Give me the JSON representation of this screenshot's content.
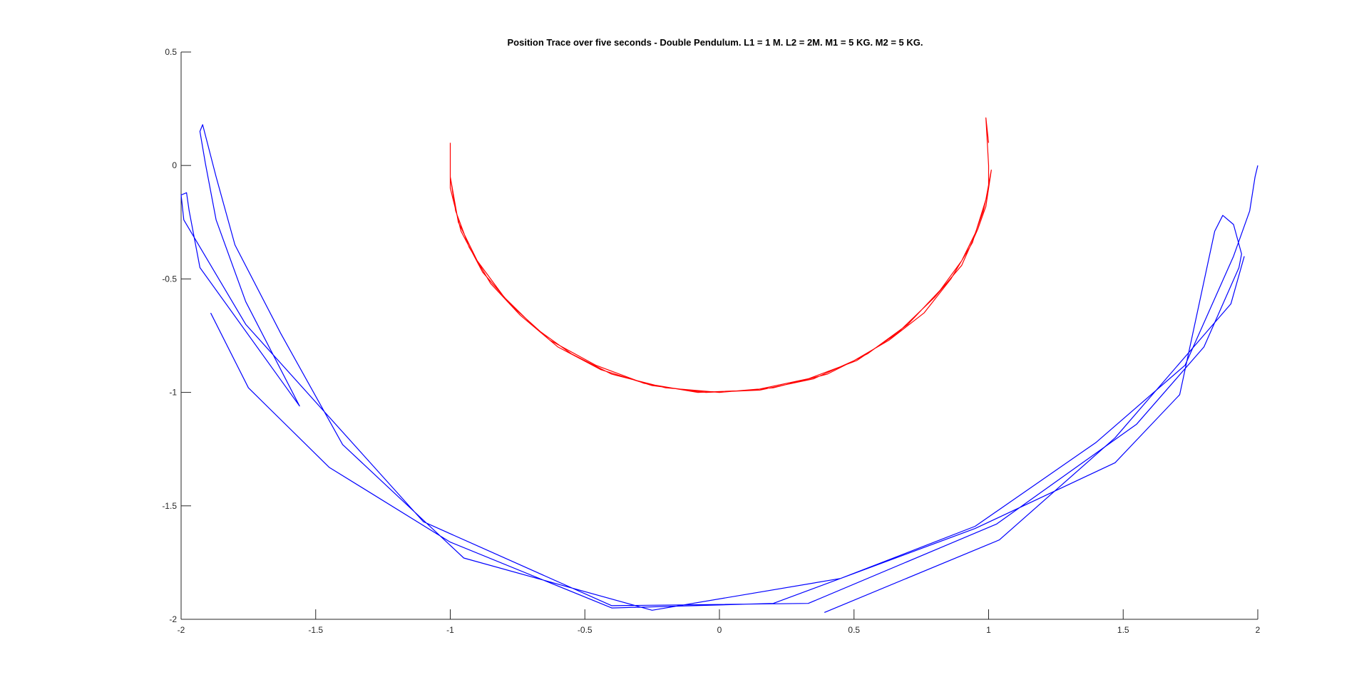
{
  "chart_data": {
    "type": "line",
    "title": "Position Trace over five seconds - Double Pendulum. L1 = 1 M. L2 = 2M. M1 = 5 KG. M2 = 5 KG.",
    "xlabel": "",
    "ylabel": "",
    "xlim": [
      -2,
      2
    ],
    "ylim": [
      -2,
      0.5
    ],
    "grid": false,
    "x_ticks": [
      -2,
      -1.5,
      -1,
      -0.5,
      0,
      0.5,
      1,
      1.5,
      2
    ],
    "x_tick_labels": [
      "-2",
      "-1.5",
      "-1",
      "-0.5",
      "0",
      "0.5",
      "1",
      "1.5",
      "2"
    ],
    "y_ticks": [
      -2,
      -1.5,
      -1,
      -0.5,
      0,
      0.5
    ],
    "y_tick_labels": [
      "-2",
      "-1.5",
      "-1",
      "-0.5",
      "0",
      "0.5"
    ],
    "series": [
      {
        "color": "#ff0000",
        "points": [
          [
            1.0,
            0.1
          ],
          [
            0.99,
            0.21
          ],
          [
            1.0,
            0.0
          ],
          [
            1.0,
            -0.1
          ],
          [
            0.98,
            -0.2
          ],
          [
            0.95,
            -0.3
          ],
          [
            0.9,
            -0.42
          ],
          [
            0.82,
            -0.55
          ],
          [
            0.7,
            -0.7
          ],
          [
            0.55,
            -0.83
          ],
          [
            0.4,
            -0.92
          ],
          [
            0.2,
            -0.98
          ],
          [
            0.0,
            -1.0
          ],
          [
            -0.2,
            -0.98
          ],
          [
            -0.4,
            -0.92
          ],
          [
            -0.55,
            -0.83
          ],
          [
            -0.68,
            -0.72
          ],
          [
            -0.8,
            -0.58
          ],
          [
            -0.9,
            -0.42
          ],
          [
            -0.97,
            -0.25
          ],
          [
            -1.0,
            -0.05
          ],
          [
            -0.98,
            -0.2
          ],
          [
            -0.93,
            -0.36
          ],
          [
            -0.85,
            -0.52
          ],
          [
            -0.74,
            -0.66
          ],
          [
            -0.6,
            -0.8
          ],
          [
            -0.44,
            -0.9
          ],
          [
            -0.25,
            -0.97
          ],
          [
            -0.05,
            -1.0
          ],
          [
            0.15,
            -0.99
          ],
          [
            0.35,
            -0.94
          ],
          [
            0.5,
            -0.86
          ],
          [
            0.63,
            -0.77
          ],
          [
            0.76,
            -0.65
          ],
          [
            0.86,
            -0.5
          ],
          [
            0.94,
            -0.34
          ],
          [
            0.99,
            -0.15
          ],
          [
            1.01,
            -0.02
          ],
          [
            0.99,
            -0.18
          ],
          [
            0.96,
            -0.28
          ],
          [
            0.9,
            -0.44
          ],
          [
            0.8,
            -0.58
          ],
          [
            0.66,
            -0.74
          ],
          [
            0.51,
            -0.86
          ],
          [
            0.33,
            -0.94
          ],
          [
            0.13,
            -0.99
          ],
          [
            -0.08,
            -1.0
          ],
          [
            -0.28,
            -0.96
          ],
          [
            -0.46,
            -0.88
          ],
          [
            -0.63,
            -0.77
          ],
          [
            -0.77,
            -0.62
          ],
          [
            -0.88,
            -0.47
          ],
          [
            -0.96,
            -0.29
          ],
          [
            -1.0,
            -0.1
          ],
          [
            -1.0,
            0.1
          ]
        ]
      },
      {
        "color": "#0000ff",
        "points": [
          [
            2.0,
            0.0
          ],
          [
            1.99,
            -0.05
          ],
          [
            1.97,
            -0.2
          ],
          [
            1.91,
            -0.4
          ],
          [
            1.73,
            -0.88
          ],
          [
            1.4,
            -1.22
          ],
          [
            0.95,
            -1.59
          ],
          [
            0.45,
            -1.82
          ],
          [
            -0.25,
            -1.96
          ],
          [
            -0.95,
            -1.73
          ],
          [
            -1.4,
            -1.23
          ],
          [
            -1.63,
            -0.74
          ],
          [
            -1.8,
            -0.35
          ],
          [
            -1.87,
            -0.05
          ],
          [
            -1.92,
            0.18
          ],
          [
            -1.93,
            0.15
          ],
          [
            -1.91,
            0.01
          ],
          [
            -1.87,
            -0.24
          ],
          [
            -1.76,
            -0.6
          ],
          [
            -1.56,
            -1.06
          ],
          [
            -1.93,
            -0.45
          ],
          [
            -1.97,
            -0.2
          ],
          [
            -1.98,
            -0.12
          ],
          [
            -2.0,
            -0.13
          ],
          [
            -1.99,
            -0.24
          ],
          [
            -1.76,
            -0.7
          ],
          [
            -1.1,
            -1.57
          ],
          [
            -0.4,
            -1.94
          ],
          [
            0.33,
            -1.93
          ],
          [
            1.03,
            -1.58
          ],
          [
            1.55,
            -1.14
          ],
          [
            1.8,
            -0.8
          ],
          [
            1.93,
            -0.45
          ],
          [
            1.94,
            -0.39
          ],
          [
            1.91,
            -0.26
          ],
          [
            1.87,
            -0.22
          ],
          [
            1.84,
            -0.29
          ],
          [
            1.71,
            -1.01
          ],
          [
            1.47,
            -1.31
          ],
          [
            0.95,
            -1.6
          ],
          [
            0.2,
            -1.93
          ],
          [
            -0.4,
            -1.95
          ],
          [
            -1.0,
            -1.66
          ],
          [
            -1.45,
            -1.33
          ],
          [
            -1.75,
            -0.98
          ],
          [
            -1.89,
            -0.65
          ]
        ]
      },
      {
        "color": "#0000ff",
        "points": [
          [
            0.39,
            -1.97
          ],
          [
            1.04,
            -1.65
          ],
          [
            1.47,
            -1.2
          ],
          [
            1.9,
            -0.61
          ],
          [
            1.95,
            -0.4
          ]
        ]
      }
    ]
  }
}
